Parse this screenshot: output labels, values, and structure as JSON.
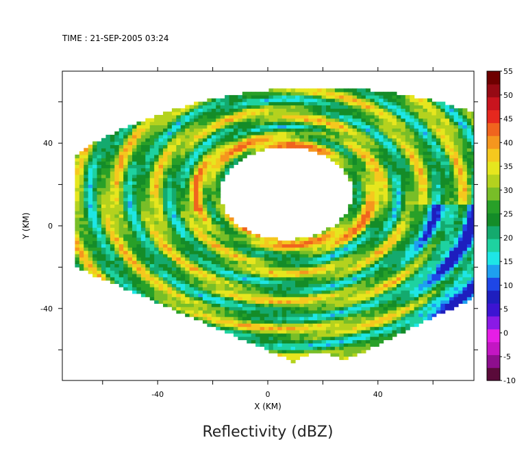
{
  "header": {
    "time_text": "TIME : 21-SEP-2005 03:24"
  },
  "chart_data": {
    "type": "heatmap",
    "title": "Reflectivity (dBZ)",
    "xlabel": "X (KM)",
    "ylabel": "Y (KM)",
    "xlim": [
      -75,
      75
    ],
    "ylim": [
      -75,
      75
    ],
    "x_ticks": [
      -40,
      0,
      40
    ],
    "y_ticks": [
      -40,
      0,
      40
    ],
    "colorbar": {
      "min": -10,
      "max": 55,
      "ticks": [
        55,
        50,
        45,
        40,
        35,
        30,
        25,
        20,
        15,
        10,
        5,
        0,
        -5,
        -10
      ],
      "colors": [
        "#5a0a3a",
        "#8e0e8e",
        "#c316c3",
        "#e61ee6",
        "#8a1ae6",
        "#3c14d2",
        "#1e1ebe",
        "#1e46e6",
        "#1ea0f0",
        "#1ee6e6",
        "#1ed2a0",
        "#14aa6e",
        "#148c28",
        "#28a028",
        "#78be28",
        "#b4d21e",
        "#e6e61e",
        "#f5c81e",
        "#f5961e",
        "#f0641e",
        "#e6281e",
        "#c8141e",
        "#960a14",
        "#6e0000"
      ]
    },
    "field": {
      "description": "Hurricane eyewall and spiral rainbands reflectivity field",
      "eye_center": [
        6,
        15
      ],
      "eye_radius_km": 24,
      "value_range_dbz": [
        8,
        44
      ]
    }
  }
}
